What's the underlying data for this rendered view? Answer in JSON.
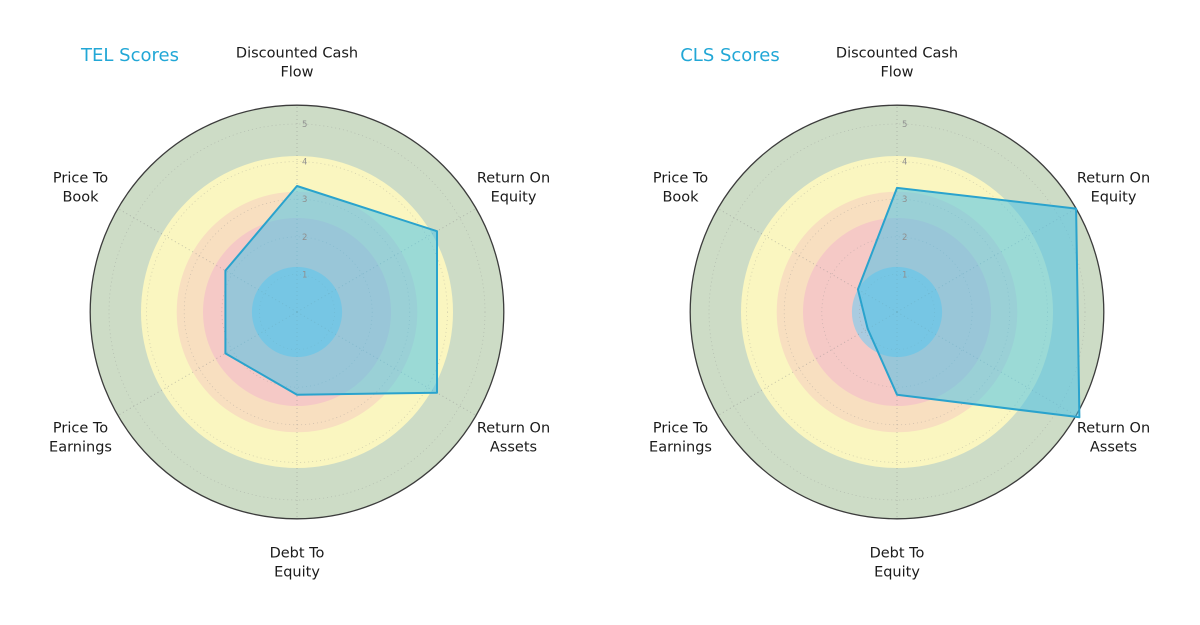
{
  "page": {
    "background": "#ffffff"
  },
  "style": {
    "title_color": "#22a7d6",
    "axis_label_color": "#1a1a1a",
    "tick_label_color": "#8f8f8f",
    "outer_ring_stroke": "#3c3c3c",
    "grid_color": "#8a8a8a",
    "polygon_fill": "#4cc3e8",
    "polygon_fill_opacity": 0.55,
    "polygon_stroke": "#2aa3cd"
  },
  "chart_data": [
    {
      "type": "radar",
      "title": "TEL Scores",
      "axes": [
        "Discounted Cash Flow",
        "Return On Equity",
        "Return On Assets",
        "Debt To Equity",
        "Price To Earnings",
        "Price To Book"
      ],
      "axis_label_lines": [
        [
          "Discounted Cash",
          "Flow"
        ],
        [
          "Return On",
          "Equity"
        ],
        [
          "Return On",
          "Assets"
        ],
        [
          "Debt To",
          "Equity"
        ],
        [
          "Price To",
          "Earnings"
        ],
        [
          "Price To",
          "Book"
        ]
      ],
      "values": [
        3.35,
        4.3,
        4.3,
        2.2,
        2.2,
        2.2
      ],
      "r_ticks": [
        "1",
        "2",
        "3",
        "4",
        "5"
      ],
      "r_max": 5.5,
      "grid": true,
      "legend": "none",
      "rings": [
        {
          "from": 0,
          "to": 1.2,
          "color": "#a9cbe0"
        },
        {
          "from": 1.2,
          "to": 2.5,
          "color": "#f5c9c6"
        },
        {
          "from": 2.5,
          "to": 3.2,
          "color": "#f8dfc0"
        },
        {
          "from": 3.2,
          "to": 4.15,
          "color": "#faf6c0"
        },
        {
          "from": 4.15,
          "to": 5.5,
          "color": "#cddcc6"
        }
      ]
    },
    {
      "type": "radar",
      "title": "CLS Scores",
      "axes": [
        "Discounted Cash Flow",
        "Return On Equity",
        "Return On Assets",
        "Debt To Equity",
        "Price To Earnings",
        "Price To Book"
      ],
      "axis_label_lines": [
        [
          "Discounted Cash",
          "Flow"
        ],
        [
          "Return On",
          "Equity"
        ],
        [
          "Return On",
          "Assets"
        ],
        [
          "Debt To",
          "Equity"
        ],
        [
          "Price To",
          "Earnings"
        ],
        [
          "Price To",
          "Book"
        ]
      ],
      "values": [
        3.3,
        5.5,
        5.6,
        2.2,
        0.9,
        1.2
      ],
      "r_ticks": [
        "1",
        "2",
        "3",
        "4",
        "5"
      ],
      "r_max": 5.5,
      "grid": true,
      "legend": "none",
      "rings": [
        {
          "from": 0,
          "to": 1.2,
          "color": "#a9cbe0"
        },
        {
          "from": 1.2,
          "to": 2.5,
          "color": "#f5c9c6"
        },
        {
          "from": 2.5,
          "to": 3.2,
          "color": "#f8dfc0"
        },
        {
          "from": 3.2,
          "to": 4.15,
          "color": "#faf6c0"
        },
        {
          "from": 4.15,
          "to": 5.5,
          "color": "#cddcc6"
        }
      ]
    }
  ]
}
